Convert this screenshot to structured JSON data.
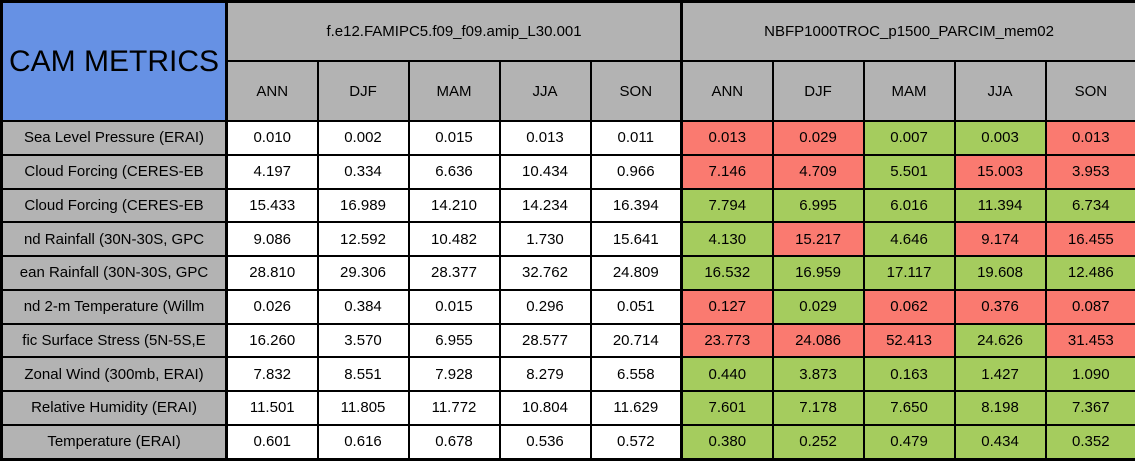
{
  "colors": {
    "title_bg": "#6691e4",
    "header_bg": "#b3b3b3",
    "better_bg": "#a5cc5e",
    "worse_bg": "#fa7a70",
    "control_bg": "#ffffff",
    "border": "#000000"
  },
  "chart_data": {
    "type": "table",
    "title": "CAM METRICS",
    "column_groups": [
      "f.e12.FAMIPC5.f09_f09.amip_L30.001",
      "NBFP1000TROC_p1500_PARCIM_mem02"
    ],
    "seasons": [
      "ANN",
      "DJF",
      "MAM",
      "JJA",
      "SON"
    ],
    "metrics": [
      "Sea Level Pressure (ERAI)",
      "Cloud Forcing (CERES-EB",
      "Cloud Forcing (CERES-EB",
      "nd Rainfall (30N-30S, GPC",
      "ean Rainfall (30N-30S, GPC",
      "nd 2-m Temperature (Willm",
      "fic Surface Stress (5N-5S,E",
      "Zonal Wind (300mb, ERAI)",
      "Relative Humidity (ERAI)",
      "Temperature (ERAI)"
    ],
    "series": [
      {
        "name": "f.e12.FAMIPC5.f09_f09.amip_L30.001",
        "values": [
          [
            "0.010",
            "0.002",
            "0.015",
            "0.013",
            "0.011"
          ],
          [
            "4.197",
            "0.334",
            "6.636",
            "10.434",
            "0.966"
          ],
          [
            "15.433",
            "16.989",
            "14.210",
            "14.234",
            "16.394"
          ],
          [
            "9.086",
            "12.592",
            "10.482",
            "1.730",
            "15.641"
          ],
          [
            "28.810",
            "29.306",
            "28.377",
            "32.762",
            "24.809"
          ],
          [
            "0.026",
            "0.384",
            "0.015",
            "0.296",
            "0.051"
          ],
          [
            "16.260",
            "3.570",
            "6.955",
            "28.577",
            "20.714"
          ],
          [
            "7.832",
            "8.551",
            "7.928",
            "8.279",
            "6.558"
          ],
          [
            "11.501",
            "11.805",
            "11.772",
            "10.804",
            "11.629"
          ],
          [
            "0.601",
            "0.616",
            "0.678",
            "0.536",
            "0.572"
          ]
        ]
      },
      {
        "name": "NBFP1000TROC_p1500_PARCIM_mem02",
        "values": [
          [
            "0.013",
            "0.029",
            "0.007",
            "0.003",
            "0.013"
          ],
          [
            "7.146",
            "4.709",
            "5.501",
            "15.003",
            "3.953"
          ],
          [
            "7.794",
            "6.995",
            "6.016",
            "11.394",
            "6.734"
          ],
          [
            "4.130",
            "15.217",
            "4.646",
            "9.174",
            "16.455"
          ],
          [
            "16.532",
            "16.959",
            "17.117",
            "19.608",
            "12.486"
          ],
          [
            "0.127",
            "0.029",
            "0.062",
            "0.376",
            "0.087"
          ],
          [
            "23.773",
            "24.086",
            "52.413",
            "24.626",
            "31.453"
          ],
          [
            "0.440",
            "3.873",
            "0.163",
            "1.427",
            "1.090"
          ],
          [
            "7.601",
            "7.178",
            "7.650",
            "8.198",
            "7.367"
          ],
          [
            "0.380",
            "0.252",
            "0.479",
            "0.434",
            "0.352"
          ]
        ],
        "status": [
          [
            "worse",
            "worse",
            "better",
            "better",
            "worse"
          ],
          [
            "worse",
            "worse",
            "better",
            "worse",
            "worse"
          ],
          [
            "better",
            "better",
            "better",
            "better",
            "better"
          ],
          [
            "better",
            "worse",
            "better",
            "worse",
            "worse"
          ],
          [
            "better",
            "better",
            "better",
            "better",
            "better"
          ],
          [
            "worse",
            "better",
            "worse",
            "worse",
            "worse"
          ],
          [
            "worse",
            "worse",
            "worse",
            "better",
            "worse"
          ],
          [
            "better",
            "better",
            "better",
            "better",
            "better"
          ],
          [
            "better",
            "better",
            "better",
            "better",
            "better"
          ],
          [
            "better",
            "better",
            "better",
            "better",
            "better"
          ]
        ]
      }
    ]
  }
}
